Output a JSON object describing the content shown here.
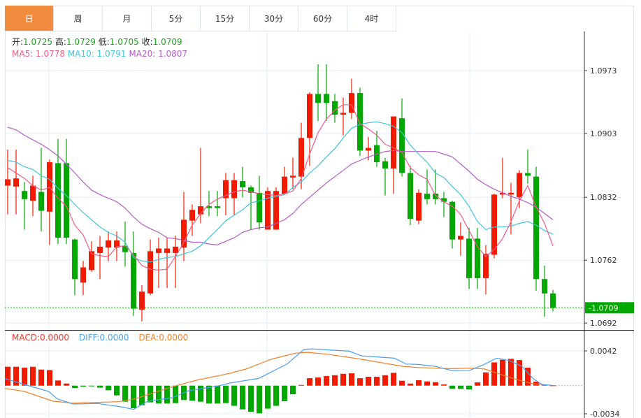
{
  "tabs": [
    "日",
    "周",
    "月",
    "5分",
    "15分",
    "30分",
    "60分",
    "4时"
  ],
  "active_tab": 0,
  "ohlc_info": {
    "open_label": "开:",
    "open": "1.0725",
    "high_label": "高:",
    "high": "1.0729",
    "low_label": "低:",
    "low": "1.0705",
    "close_label": "收:",
    "close": "1.0709"
  },
  "ma_info": {
    "ma5": "MA5: 1.0778",
    "ma10": "MA10: 1.0791",
    "ma20": "MA20: 1.0807"
  },
  "macd_info": {
    "macd": "MACD:0.0000",
    "diff": "DIFF:0.0000",
    "dea": "DEA:0.0000"
  },
  "colors": {
    "up": "#f21a00",
    "down": "#00a800",
    "ma5": "#ef5a86",
    "ma10": "#3ec5dc",
    "ma20": "#b35cc8",
    "diff": "#4aa0f0",
    "dea": "#f0802a",
    "active_tab": "#f18b3e"
  },
  "chart_data": [
    {
      "type": "candlestick",
      "title": "",
      "y_ticks": [
        "1.0973",
        "1.0903",
        "1.0832",
        "1.0762",
        "1.0692"
      ],
      "ylim": [
        1.0682,
        1.0973
      ],
      "current_price": "1.0709",
      "ohlc": [
        [
          1.0845,
          1.0885,
          1.0813,
          1.0852
        ],
        [
          1.0844,
          1.0885,
          1.0813,
          1.0853
        ],
        [
          1.0839,
          1.0849,
          1.0796,
          1.083
        ],
        [
          1.0828,
          1.0856,
          1.0811,
          1.0845
        ],
        [
          1.0838,
          1.0887,
          1.0794,
          1.0817
        ],
        [
          1.0816,
          1.0874,
          1.0779,
          1.0871
        ],
        [
          1.087,
          1.0897,
          1.078,
          1.0787
        ],
        [
          1.087,
          1.0897,
          1.078,
          1.0787
        ],
        [
          1.0785,
          1.0786,
          1.0723,
          1.0741
        ],
        [
          1.0737,
          1.0761,
          1.0723,
          1.0754
        ],
        [
          1.0751,
          1.0783,
          1.0749,
          1.0772
        ],
        [
          1.077,
          1.0789,
          1.0741,
          1.0777
        ],
        [
          1.0776,
          1.0794,
          1.0761,
          1.0784
        ],
        [
          1.0776,
          1.0794,
          1.0761,
          1.0784
        ],
        [
          1.0778,
          1.0805,
          1.0755,
          1.0771
        ],
        [
          1.077,
          1.0794,
          1.07,
          1.0708
        ],
        [
          1.0707,
          1.0734,
          1.0694,
          1.0727
        ],
        [
          1.0725,
          1.0785,
          1.0723,
          1.0772
        ],
        [
          1.077,
          1.0787,
          1.0731,
          1.0775
        ],
        [
          1.077,
          1.0787,
          1.0731,
          1.0775
        ],
        [
          1.077,
          1.0789,
          1.0731,
          1.0777
        ],
        [
          1.0776,
          1.0838,
          1.0761,
          1.0807
        ],
        [
          1.0806,
          1.0824,
          1.0789,
          1.0818
        ],
        [
          1.0813,
          1.0887,
          1.0803,
          1.0822
        ],
        [
          1.0822,
          1.0839,
          1.0811,
          1.082
        ],
        [
          1.0822,
          1.0839,
          1.0811,
          1.082
        ],
        [
          1.0831,
          1.0859,
          1.0812,
          1.0851
        ],
        [
          1.0831,
          1.0859,
          1.0812,
          1.0851
        ],
        [
          1.085,
          1.0866,
          1.0832,
          1.0843
        ],
        [
          1.0843,
          1.0845,
          1.0796,
          1.0837
        ],
        [
          1.0837,
          1.0856,
          1.0796,
          1.0804
        ],
        [
          1.0796,
          1.0843,
          1.0796,
          1.0839
        ],
        [
          1.0796,
          1.0843,
          1.0796,
          1.0839
        ],
        [
          1.0836,
          1.0866,
          1.0836,
          1.0855
        ],
        [
          1.0854,
          1.0876,
          1.0841,
          1.0856
        ],
        [
          1.0855,
          1.0915,
          1.0841,
          1.0898
        ],
        [
          1.0898,
          1.0949,
          1.0867,
          1.0947
        ],
        [
          1.0947,
          1.098,
          1.0917,
          1.0937
        ],
        [
          1.0947,
          1.098,
          1.0917,
          1.0937
        ],
        [
          1.0939,
          1.0947,
          1.0915,
          1.0924
        ],
        [
          1.0924,
          1.0943,
          1.0901,
          1.0926
        ],
        [
          1.0926,
          1.0964,
          1.0919,
          1.0948
        ],
        [
          1.0948,
          1.0954,
          1.0878,
          1.0884
        ],
        [
          1.0884,
          1.0899,
          1.0873,
          1.0887
        ],
        [
          1.089,
          1.0906,
          1.0866,
          1.0871
        ],
        [
          1.0872,
          1.0876,
          1.0834,
          1.0864
        ],
        [
          1.0864,
          1.0922,
          1.0836,
          1.0922
        ],
        [
          1.092,
          1.0942,
          1.0855,
          1.0859
        ],
        [
          1.0859,
          1.0867,
          1.0801,
          1.0808
        ],
        [
          1.0806,
          1.0841,
          1.0802,
          1.0837
        ],
        [
          1.0836,
          1.0863,
          1.0824,
          1.083
        ],
        [
          1.0836,
          1.0863,
          1.0824,
          1.083
        ],
        [
          1.0831,
          1.0838,
          1.081,
          1.0827
        ],
        [
          1.0827,
          1.0828,
          1.0775,
          1.0785
        ],
        [
          1.0785,
          1.0804,
          1.0767,
          1.0789
        ],
        [
          1.0786,
          1.0798,
          1.073,
          1.0742
        ],
        [
          1.0786,
          1.0798,
          1.073,
          1.0742
        ],
        [
          1.0742,
          1.0779,
          1.0724,
          1.0769
        ],
        [
          1.0768,
          1.0836,
          1.0764,
          1.0835
        ],
        [
          1.0835,
          1.0876,
          1.0831,
          1.0837
        ],
        [
          1.0835,
          1.0848,
          1.0791,
          1.0837
        ],
        [
          1.0832,
          1.0862,
          1.082,
          1.0859
        ],
        [
          1.0859,
          1.0885,
          1.0847,
          1.0856
        ],
        [
          1.0855,
          1.0866,
          1.0728,
          1.0741
        ],
        [
          1.0741,
          1.0756,
          1.0699,
          1.0725
        ],
        [
          1.0725,
          1.0729,
          1.0705,
          1.0709
        ]
      ],
      "ma5": [
        1.0865,
        1.0859,
        1.0853,
        1.0845,
        1.084,
        1.0843,
        1.0831,
        1.0822,
        1.0801,
        1.079,
        1.0769,
        1.0767,
        1.0766,
        1.0777,
        1.0778,
        1.0768,
        1.0756,
        1.0752,
        1.0751,
        1.0752,
        1.0766,
        1.0782,
        1.0801,
        1.0814,
        1.0824,
        1.083,
        1.0834,
        1.0838,
        1.084,
        1.0838,
        1.0836,
        1.0835,
        1.0834,
        1.0836,
        1.0839,
        1.0853,
        1.088,
        1.0904,
        1.0919,
        1.0929,
        1.0935,
        1.0935,
        1.0914,
        1.0908,
        1.0901,
        1.0891,
        1.0887,
        1.0882,
        1.0865,
        1.0857,
        1.0852,
        1.0834,
        1.0827,
        1.0822,
        1.0813,
        1.0795,
        1.0777,
        1.0766,
        1.0774,
        1.0786,
        1.0805,
        1.0828,
        1.0845,
        1.0821,
        1.0803,
        1.0778
      ],
      "ma10": [
        1.0873,
        1.0871,
        1.0866,
        1.0863,
        1.0856,
        1.0852,
        1.0842,
        1.0834,
        1.0824,
        1.0815,
        1.0807,
        1.0799,
        1.0793,
        1.0789,
        1.0782,
        1.0765,
        1.0761,
        1.076,
        1.0763,
        1.0765,
        1.0766,
        1.0769,
        1.0772,
        1.0778,
        1.0787,
        1.0796,
        1.0806,
        1.0812,
        1.0818,
        1.0826,
        1.0828,
        1.0831,
        1.0833,
        1.0835,
        1.0843,
        1.0849,
        1.0859,
        1.0867,
        1.0877,
        1.0886,
        1.0898,
        1.0909,
        1.0913,
        1.0915,
        1.0916,
        1.0914,
        1.0911,
        1.0904,
        1.089,
        1.088,
        1.0871,
        1.0859,
        1.0854,
        1.0844,
        1.0835,
        1.0822,
        1.0805,
        1.0796,
        1.0799,
        1.0799,
        1.08,
        1.0803,
        1.0805,
        1.0801,
        1.0795,
        1.0791
      ],
      "ma20": [
        1.091,
        1.0907,
        1.0901,
        1.0896,
        1.0891,
        1.0885,
        1.0878,
        1.0869,
        1.0859,
        1.0849,
        1.084,
        1.0835,
        1.0831,
        1.0827,
        1.082,
        1.081,
        1.0802,
        1.0797,
        1.0793,
        1.0787,
        1.0786,
        1.0784,
        1.0782,
        1.0782,
        1.078,
        1.0779,
        1.0783,
        1.0787,
        1.0793,
        1.0796,
        1.0798,
        1.0799,
        1.0803,
        1.0807,
        1.0814,
        1.0824,
        1.0832,
        1.084,
        1.0848,
        1.0855,
        1.0862,
        1.0869,
        1.0873,
        1.0877,
        1.088,
        1.0883,
        1.0884,
        1.0883,
        1.0883,
        1.0883,
        1.0883,
        1.0883,
        1.088,
        1.0877,
        1.0869,
        1.0861,
        1.0852,
        1.0846,
        1.0841,
        1.0837,
        1.0833,
        1.083,
        1.0826,
        1.0821,
        1.0814,
        1.0807
      ]
    },
    {
      "type": "macd",
      "y_ticks": [
        "0.0042",
        "-0.0034"
      ],
      "ylim": [
        -0.0034,
        0.0042
      ],
      "macd_hist": [
        0.00228,
        0.00228,
        0.00216,
        0.00228,
        0.00194,
        0.00188,
        0.00062,
        0.00025,
        -0.00028,
        -0.00011,
        -6e-05,
        -0.00025,
        -0.00056,
        -0.00118,
        -0.00194,
        -0.00273,
        -0.00236,
        -0.00202,
        -0.00216,
        -0.00216,
        -0.00211,
        -0.00174,
        -0.00183,
        -0.00194,
        -0.00216,
        -0.00216,
        -0.00211,
        -0.00244,
        -0.00287,
        -0.00315,
        -0.00334,
        -0.00278,
        -0.00244,
        -0.00188,
        -0.00104,
        8e-05,
        0.0009,
        0.00098,
        0.00115,
        0.00126,
        0.00143,
        0.00149,
        0.0009,
        0.00107,
        0.00107,
        0.00126,
        0.00155,
        0.00059,
        0.00025,
        0.00065,
        0.00051,
        0.00042,
        0.00014,
        -0.00039,
        -0.00039,
        -0.00045,
        0.00039,
        0.0016,
        0.00281,
        0.00312,
        0.00323,
        0.00309,
        0.00216,
        0.00048,
        0.00014,
        3e-05
      ],
      "diff": [
        [
          -0.5,
          0.00084
        ],
        [
          2.0,
          0.00014
        ],
        [
          4.9,
          -0.0007
        ],
        [
          5.9,
          -0.0016
        ],
        [
          7.8,
          -0.00222
        ],
        [
          10.8,
          -0.00216
        ],
        [
          13.7,
          -0.00259
        ],
        [
          15.0,
          -0.00287
        ],
        [
          16.7,
          -0.00188
        ],
        [
          19.6,
          -0.00146
        ],
        [
          21.6,
          -0.00062
        ],
        [
          25.0,
          -6e-05
        ],
        [
          26.5,
          0.00031
        ],
        [
          29.9,
          0.00087
        ],
        [
          31.4,
          0.00163
        ],
        [
          33.3,
          0.00261
        ],
        [
          35.3,
          0.00436
        ],
        [
          36.3,
          0.00444
        ],
        [
          40.7,
          0.00416
        ],
        [
          42.2,
          0.0036
        ],
        [
          46.1,
          0.00332
        ],
        [
          47.5,
          0.00261
        ],
        [
          49.0,
          0.00256
        ],
        [
          51.0,
          0.00233
        ],
        [
          52.9,
          0.00183
        ],
        [
          55.1,
          0.00185
        ],
        [
          56.9,
          0.00261
        ],
        [
          58.3,
          0.00332
        ],
        [
          59.8,
          0.00303
        ],
        [
          61.3,
          0.00233
        ],
        [
          62.7,
          0.00079
        ],
        [
          63.7,
          0.00014
        ],
        [
          65.2,
          0.0
        ]
      ],
      "dea": [
        [
          -0.5,
          -0.00034
        ],
        [
          2.0,
          -0.0007
        ],
        [
          5.4,
          -0.00188
        ],
        [
          7.8,
          -0.00211
        ],
        [
          13.2,
          -0.00194
        ],
        [
          15.2,
          -0.0016
        ],
        [
          19.6,
          -0.00014
        ],
        [
          22.5,
          0.00065
        ],
        [
          26.5,
          0.00149
        ],
        [
          28.4,
          0.002
        ],
        [
          31.4,
          0.00318
        ],
        [
          34.3,
          0.00393
        ],
        [
          35.8,
          0.00402
        ],
        [
          38.2,
          0.00379
        ],
        [
          42.2,
          0.00318
        ],
        [
          47.1,
          0.00233
        ],
        [
          49.0,
          0.00219
        ],
        [
          52.9,
          0.00205
        ],
        [
          55.4,
          0.00211
        ],
        [
          56.9,
          0.002
        ],
        [
          58.8,
          0.00135
        ],
        [
          60.8,
          0.0007
        ],
        [
          62.7,
          0.00022
        ],
        [
          65.2,
          0.0
        ]
      ]
    }
  ]
}
